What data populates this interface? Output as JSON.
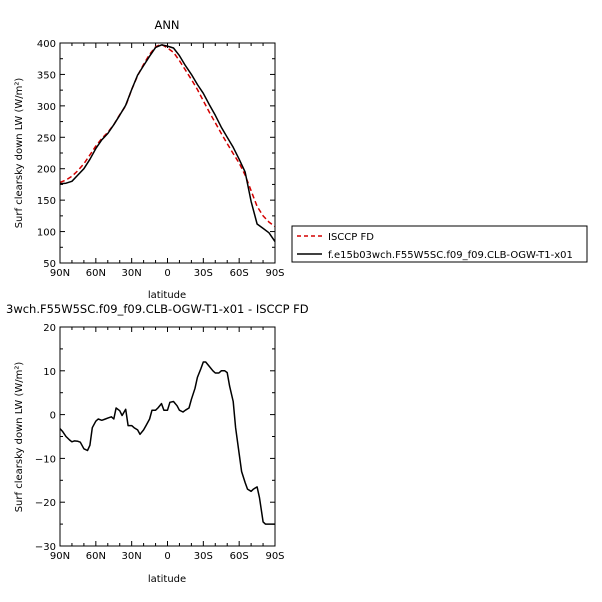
{
  "colors": {
    "obs": "#d40000",
    "model": "#000000",
    "axis": "#000000"
  },
  "chart_data": [
    {
      "type": "line",
      "title": "ANN",
      "xlabel": "latitude",
      "ylabel": "Surf clearsky down LW (W/m²)",
      "xlim": [
        90,
        -90
      ],
      "ylim": [
        50,
        400
      ],
      "xticks": [
        90,
        60,
        30,
        0,
        -30,
        -60,
        -90
      ],
      "xtick_labels": [
        "90N",
        "60N",
        "30N",
        "0",
        "30S",
        "60S",
        "90S"
      ],
      "yticks": [
        50,
        100,
        150,
        200,
        250,
        300,
        350,
        400
      ],
      "ytick_labels": [
        "50",
        "100",
        "150",
        "200",
        "250",
        "300",
        "350",
        "400"
      ],
      "legend_position": "right",
      "series": [
        {
          "name": "ISCCP FD",
          "style": "dashed",
          "x": [
            90,
            85,
            80,
            75,
            70,
            65,
            60,
            55,
            50,
            45,
            40,
            35,
            30,
            25,
            20,
            15,
            10,
            5,
            0,
            -5,
            -10,
            -15,
            -20,
            -25,
            -30,
            -35,
            -40,
            -45,
            -50,
            -55,
            -60,
            -65,
            -70,
            -75,
            -80,
            -85,
            -90
          ],
          "y": [
            178,
            182,
            188,
            197,
            208,
            222,
            236,
            248,
            258,
            270,
            286,
            300,
            326,
            348,
            366,
            382,
            394,
            398,
            392,
            385,
            372,
            357,
            342,
            326,
            308,
            290,
            273,
            256,
            240,
            224,
            209,
            190,
            165,
            140,
            125,
            115,
            108
          ]
        },
        {
          "name": "f.e15b03wch.F55W5SC.f09_f09.CLB-OGW-T1-x01",
          "style": "solid",
          "x": [
            90,
            85,
            80,
            75,
            70,
            65,
            60,
            55,
            50,
            45,
            40,
            35,
            30,
            25,
            20,
            15,
            10,
            5,
            0,
            -5,
            -10,
            -15,
            -20,
            -25,
            -30,
            -35,
            -40,
            -45,
            -50,
            -55,
            -60,
            -65,
            -70,
            -75,
            -80,
            -85,
            -90
          ],
          "y": [
            176,
            177,
            180,
            190,
            200,
            215,
            232,
            246,
            256,
            270,
            285,
            301,
            326,
            349,
            364,
            379,
            393,
            397,
            395,
            392,
            380,
            364,
            350,
            334,
            320,
            302,
            285,
            266,
            250,
            234,
            215,
            195,
            148,
            112,
            105,
            98,
            84
          ]
        }
      ]
    },
    {
      "type": "line",
      "title": "3wch.F55W5SC.f09_f09.CLB-OGW-T1-x01 - ISCCP FD",
      "xlabel": "latitude",
      "ylabel": "Surf clearsky down LW (W/m²)",
      "xlim": [
        90,
        -90
      ],
      "ylim": [
        -30,
        20
      ],
      "xticks": [
        90,
        60,
        30,
        0,
        -30,
        -60,
        -90
      ],
      "xtick_labels": [
        "90N",
        "60N",
        "30N",
        "0",
        "30S",
        "60S",
        "90S"
      ],
      "yticks": [
        -30,
        -20,
        -10,
        0,
        10,
        20
      ],
      "ytick_labels": [
        "−30",
        "−20",
        "−10",
        "0",
        "10",
        "20"
      ],
      "series": [
        {
          "style": "solid",
          "x": [
            90,
            88,
            85,
            82,
            80,
            78,
            75,
            73,
            70,
            67,
            65,
            63,
            60,
            58,
            55,
            52,
            50,
            47,
            45,
            43,
            40,
            38,
            35,
            33,
            30,
            28,
            25,
            23,
            20,
            18,
            15,
            13,
            10,
            8,
            5,
            3,
            0,
            -2,
            -5,
            -8,
            -10,
            -13,
            -15,
            -18,
            -20,
            -23,
            -25,
            -28,
            -30,
            -32,
            -35,
            -38,
            -40,
            -43,
            -45,
            -48,
            -50,
            -52,
            -55,
            -57,
            -60,
            -62,
            -65,
            -67,
            -70,
            -72,
            -75,
            -77,
            -80,
            -82,
            -85,
            -87,
            -90
          ],
          "y": [
            -3.2,
            -3.8,
            -5.0,
            -5.8,
            -6.2,
            -6.0,
            -6.1,
            -6.3,
            -7.8,
            -8.2,
            -7.0,
            -3.0,
            -1.5,
            -1.0,
            -1.3,
            -1.0,
            -0.8,
            -0.5,
            -1.0,
            1.5,
            0.9,
            -0.2,
            1.2,
            -2.5,
            -2.5,
            -3.0,
            -3.5,
            -4.5,
            -3.5,
            -2.5,
            -1.0,
            1.0,
            1.0,
            1.5,
            2.5,
            1.0,
            1.0,
            2.8,
            3.0,
            2.0,
            1.0,
            0.6,
            1.0,
            1.5,
            3.5,
            6.0,
            8.5,
            10.5,
            12.0,
            12.0,
            11.0,
            10.0,
            9.5,
            9.5,
            10.0,
            10.0,
            9.6,
            6.5,
            3.0,
            -3.0,
            -9.0,
            -13.0,
            -15.5,
            -17.0,
            -17.5,
            -17.0,
            -16.5,
            -19.0,
            -24.5,
            -25.0,
            -25.0,
            -25.0,
            -25.0
          ]
        }
      ]
    }
  ]
}
